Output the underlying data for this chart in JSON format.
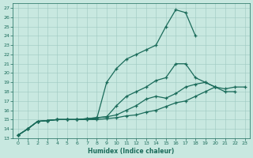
{
  "xlabel": "Humidex (Indice chaleur)",
  "background_color": "#c8e8e0",
  "grid_color": "#9ec8c0",
  "line_color": "#1a6b5a",
  "xlim": [
    -0.5,
    23.5
  ],
  "ylim": [
    13,
    27.5
  ],
  "xticks": [
    0,
    1,
    2,
    3,
    4,
    5,
    6,
    7,
    8,
    9,
    10,
    11,
    12,
    13,
    14,
    15,
    16,
    17,
    18,
    19,
    20,
    21,
    22,
    23
  ],
  "yticks": [
    13,
    14,
    15,
    16,
    17,
    18,
    19,
    20,
    21,
    22,
    23,
    24,
    25,
    26,
    27
  ],
  "line1_x": [
    0,
    1,
    2,
    3,
    4,
    5,
    6,
    7,
    8,
    9,
    10,
    11,
    12,
    13,
    14,
    15,
    16,
    17,
    18
  ],
  "line1_y": [
    13.3,
    14.0,
    14.8,
    14.9,
    15.0,
    15.0,
    15.0,
    15.0,
    15.1,
    19.0,
    20.5,
    21.5,
    22.0,
    22.5,
    23.0,
    25.0,
    26.8,
    26.5,
    24.0
  ],
  "line2_x": [
    0,
    1,
    2,
    3,
    4,
    5,
    6,
    7,
    8,
    9,
    10,
    11,
    12,
    13,
    14,
    15,
    16,
    17,
    18,
    19,
    20,
    21,
    22,
    23
  ],
  "line2_y": [
    13.3,
    14.0,
    14.8,
    14.9,
    15.0,
    15.0,
    15.0,
    15.1,
    15.2,
    15.3,
    15.5,
    16.0,
    16.5,
    17.2,
    17.5,
    17.3,
    17.8,
    18.5,
    18.8,
    19.0,
    18.5,
    18.3,
    18.5,
    18.5
  ],
  "line3_x": [
    0,
    1,
    2,
    3,
    4,
    5,
    6,
    7,
    8,
    9,
    10,
    11,
    12,
    13,
    14,
    15,
    16,
    17,
    18,
    19,
    20,
    21,
    22
  ],
  "line3_y": [
    13.3,
    14.0,
    14.8,
    14.9,
    15.0,
    15.0,
    15.0,
    15.1,
    15.2,
    15.3,
    16.5,
    17.5,
    18.0,
    18.5,
    19.2,
    19.5,
    21.0,
    21.0,
    19.5,
    19.0,
    18.5,
    18.0,
    18.0
  ],
  "line4_x": [
    0,
    1,
    2,
    3,
    4,
    5,
    6,
    7,
    8,
    9,
    10,
    11,
    12,
    13,
    14,
    15,
    16,
    17,
    18,
    19,
    20
  ],
  "line4_y": [
    13.3,
    14.0,
    14.8,
    14.9,
    15.0,
    15.0,
    15.0,
    15.0,
    15.0,
    15.1,
    15.2,
    15.4,
    15.5,
    15.8,
    16.0,
    16.4,
    16.8,
    17.0,
    17.5,
    18.0,
    18.5
  ]
}
